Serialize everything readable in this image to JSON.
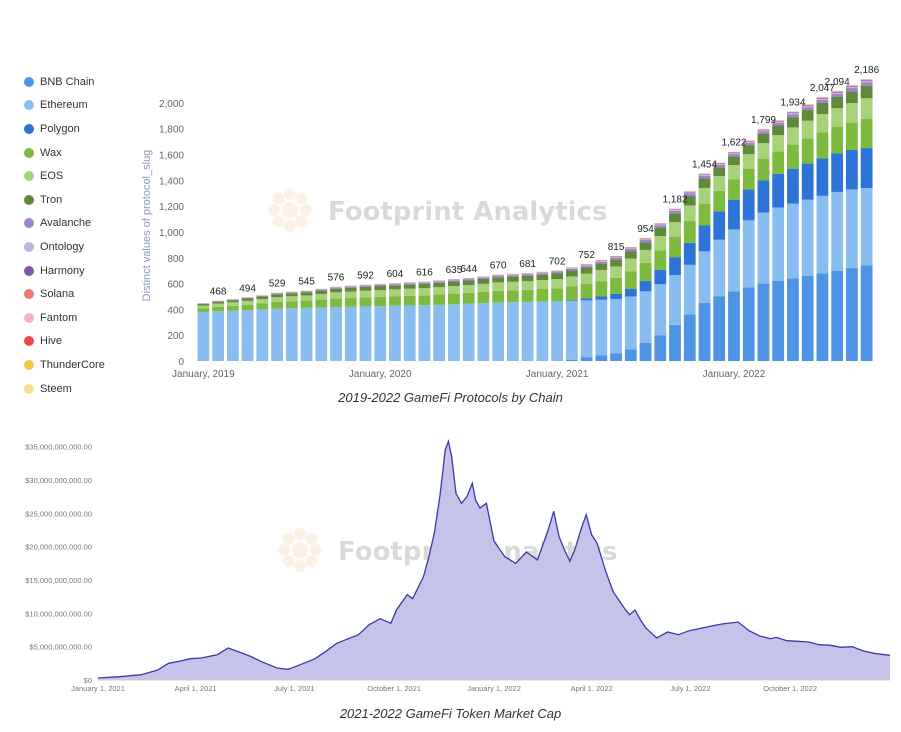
{
  "chart_data": [
    {
      "type": "bar",
      "stacked": true,
      "title": "2019-2022 GameFi Protocols by Chain",
      "ylabel": "Distinct values of protocol_slug",
      "xlabel": "",
      "ylim": [
        0,
        2100
      ],
      "yticks": [
        "0",
        "200",
        "400",
        "600",
        "800",
        "1,000",
        "1,200",
        "1,400",
        "1,600",
        "1,800",
        "2,000"
      ],
      "ytick_values": [
        0,
        200,
        400,
        600,
        800,
        1000,
        1200,
        1400,
        1600,
        1800,
        2000
      ],
      "xticks": [
        {
          "label": "January, 2019",
          "index": 0
        },
        {
          "label": "January, 2020",
          "index": 12
        },
        {
          "label": "January, 2021",
          "index": 24
        },
        {
          "label": "January, 2022",
          "index": 36
        }
      ],
      "legend_position": "left",
      "series_names": [
        "BNB Chain",
        "Ethereum",
        "Polygon",
        "Wax",
        "EOS",
        "Tron",
        "Avalanche",
        "Ontology",
        "Harmony",
        "Solana",
        "Fantom",
        "Hive",
        "ThunderCore",
        "Steem"
      ],
      "series_colors": [
        "#4e93e6",
        "#89bdf0",
        "#2d74d6",
        "#7cbb3f",
        "#a6d27a",
        "#5e8a3a",
        "#9f84cc",
        "#c3b2e0",
        "#7a55a8",
        "#ec7878",
        "#f6b3c0",
        "#e74c4c",
        "#f6c842",
        "#f9df92"
      ],
      "totals": [
        448,
        468,
        480,
        494,
        510,
        529,
        537,
        545,
        560,
        576,
        584,
        592,
        598,
        604,
        610,
        616,
        625,
        635,
        644,
        656,
        670,
        676,
        681,
        692,
        702,
        727,
        752,
        783,
        815,
        884,
        954,
        1070,
        1182,
        1318,
        1454,
        1538,
        1622,
        1710,
        1799,
        1866,
        1934,
        1990,
        2047,
        2094,
        2140,
        2186
      ],
      "labeled_values": [
        {
          "index": 1,
          "label": "468"
        },
        {
          "index": 3,
          "label": "494"
        },
        {
          "index": 5,
          "label": "529"
        },
        {
          "index": 7,
          "label": "545"
        },
        {
          "index": 9,
          "label": "576"
        },
        {
          "index": 11,
          "label": "592"
        },
        {
          "index": 13,
          "label": "604"
        },
        {
          "index": 15,
          "label": "616"
        },
        {
          "index": 17,
          "label": "635"
        },
        {
          "index": 18,
          "label": "644"
        },
        {
          "index": 20,
          "label": "670"
        },
        {
          "index": 22,
          "label": "681"
        },
        {
          "index": 24,
          "label": "702"
        },
        {
          "index": 26,
          "label": "752"
        },
        {
          "index": 28,
          "label": "815"
        },
        {
          "index": 30,
          "label": "954"
        },
        {
          "index": 32,
          "label": "1,182"
        },
        {
          "index": 34,
          "label": "1,454"
        },
        {
          "index": 36,
          "label": "1,622"
        },
        {
          "index": 38,
          "label": "1,799"
        },
        {
          "index": 40,
          "label": "1,934"
        },
        {
          "index": 42,
          "label": "2,047"
        },
        {
          "index": 43,
          "label": "2,094"
        },
        {
          "index": 45,
          "label": "2,186"
        }
      ],
      "bnb": [
        0,
        0,
        0,
        0,
        0,
        0,
        0,
        0,
        0,
        0,
        0,
        0,
        0,
        0,
        0,
        0,
        0,
        0,
        0,
        0,
        0,
        0,
        0,
        0,
        0,
        10,
        30,
        45,
        60,
        90,
        140,
        200,
        280,
        360,
        450,
        500,
        540,
        570,
        600,
        620,
        640,
        660,
        680,
        700,
        720,
        740
      ],
      "ethereum": [
        380,
        385,
        390,
        395,
        400,
        405,
        410,
        412,
        415,
        418,
        420,
        423,
        425,
        428,
        430,
        432,
        435,
        440,
        445,
        448,
        452,
        455,
        458,
        460,
        462,
        455,
        440,
        430,
        420,
        410,
        400,
        395,
        385,
        385,
        400,
        440,
        480,
        520,
        550,
        570,
        580,
        590,
        600,
        610,
        610,
        600
      ],
      "polygon": [
        0,
        0,
        0,
        0,
        0,
        0,
        0,
        0,
        0,
        0,
        0,
        0,
        0,
        0,
        0,
        0,
        0,
        0,
        0,
        0,
        0,
        0,
        0,
        0,
        0,
        5,
        15,
        25,
        40,
        60,
        80,
        110,
        140,
        170,
        200,
        220,
        230,
        240,
        250,
        260,
        270,
        280,
        290,
        300,
        305,
        310
      ]
    },
    {
      "type": "area",
      "title": "2021-2022 GameFi Token Market Cap",
      "xlabel": "",
      "ylabel": "",
      "ylim": [
        0,
        36000000000
      ],
      "yticks": [
        "$0",
        "$5,000,000,000.00",
        "$10,000,000,000.00",
        "$15,000,000,000.00",
        "$20,000,000,000.00",
        "$25,000,000,000.00",
        "$30,000,000,000.00",
        "$35,000,000,000.00"
      ],
      "ytick_values": [
        0,
        5000000000,
        10000000000,
        15000000000,
        20000000000,
        25000000000,
        30000000000,
        35000000000
      ],
      "xticks": [
        {
          "label": "January 1, 2021",
          "day": 0
        },
        {
          "label": "April 1, 2021",
          "day": 90
        },
        {
          "label": "July 1, 2021",
          "day": 181
        },
        {
          "label": "October 1, 2021",
          "day": 273
        },
        {
          "label": "January 1, 2022",
          "day": 365
        },
        {
          "label": "April 1, 2022",
          "day": 455
        },
        {
          "label": "July 1, 2022",
          "day": 546
        },
        {
          "label": "October 1, 2022",
          "day": 638
        }
      ],
      "x_days": [
        0,
        20,
        40,
        55,
        65,
        75,
        85,
        95,
        110,
        120,
        130,
        140,
        150,
        165,
        175,
        185,
        200,
        210,
        220,
        240,
        250,
        260,
        270,
        275,
        285,
        290,
        300,
        305,
        310,
        315,
        318,
        320,
        323,
        326,
        330,
        335,
        340,
        345,
        348,
        352,
        358,
        365,
        375,
        385,
        395,
        405,
        415,
        420,
        425,
        430,
        435,
        440,
        445,
        450,
        455,
        460,
        468,
        475,
        485,
        490,
        495,
        500,
        505,
        515,
        525,
        535,
        545,
        560,
        575,
        590,
        600,
        610,
        620,
        625,
        635,
        645,
        655,
        665,
        675,
        685,
        695,
        705,
        715,
        725,
        730
      ],
      "values": [
        0.3,
        0.5,
        0.8,
        1.5,
        2.5,
        2.8,
        3.2,
        3.3,
        3.8,
        4.8,
        4.2,
        3.6,
        2.8,
        1.8,
        1.6,
        2.2,
        3.2,
        4.3,
        5.5,
        6.8,
        8.3,
        9.2,
        8.5,
        10.5,
        12.8,
        12.2,
        15.5,
        18.5,
        22.0,
        27.5,
        31.5,
        34.5,
        35.8,
        33.5,
        28.0,
        26.5,
        27.5,
        29.5,
        27.0,
        25.8,
        26.5,
        20.8,
        18.5,
        17.5,
        19.2,
        18.0,
        22.5,
        25.3,
        21.5,
        19.5,
        17.8,
        19.8,
        22.5,
        24.8,
        21.8,
        20.5,
        16.3,
        13.2,
        10.8,
        9.8,
        10.5,
        9.0,
        7.8,
        6.3,
        7.2,
        6.8,
        7.4,
        7.9,
        8.4,
        8.7,
        7.4,
        6.6,
        6.2,
        6.4,
        5.9,
        5.8,
        5.7,
        5.3,
        5.2,
        4.9,
        5.0,
        4.4,
        4.0,
        3.8,
        3.7
      ]
    }
  ],
  "legend": {
    "items": [
      {
        "label": "BNB Chain",
        "color": "#4e93e6"
      },
      {
        "label": "Ethereum",
        "color": "#89bdf0"
      },
      {
        "label": "Polygon",
        "color": "#2d74d6"
      },
      {
        "label": "Wax",
        "color": "#7cbb3f"
      },
      {
        "label": "EOS",
        "color": "#a6d27a"
      },
      {
        "label": "Tron",
        "color": "#5e8a3a"
      },
      {
        "label": "Avalanche",
        "color": "#9f84cc"
      },
      {
        "label": "Ontology",
        "color": "#c3b2e0"
      },
      {
        "label": "Harmony",
        "color": "#7a55a8"
      },
      {
        "label": "Solana",
        "color": "#ec7878"
      },
      {
        "label": "Fantom",
        "color": "#f6b3c0"
      },
      {
        "label": "Hive",
        "color": "#e74c4c"
      },
      {
        "label": "ThunderCore",
        "color": "#f6c842"
      },
      {
        "label": "Steem",
        "color": "#f9df92"
      }
    ]
  },
  "watermark": {
    "text": "Footprint Analytics"
  },
  "captions": {
    "chart1": "2019-2022 GameFi Protocols by Chain",
    "chart2": "2021-2022 GameFi Token Market Cap"
  },
  "colors": {
    "area_fill": "#c5c3ea",
    "area_line": "#3c3aa8",
    "axis_text": "#888888"
  }
}
